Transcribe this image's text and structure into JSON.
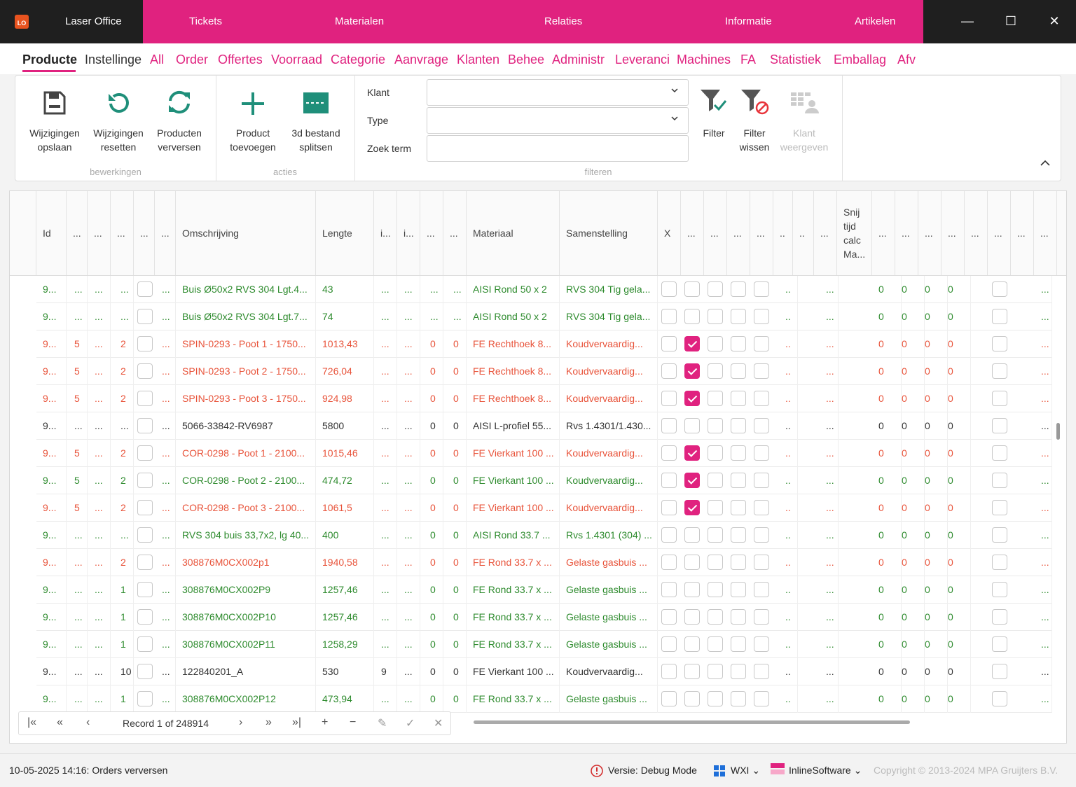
{
  "app": {
    "logo": "LO",
    "name": "Laser Office",
    "nav": [
      "Tickets",
      "Materialen",
      "Relaties",
      "Informatie",
      "Artikelen"
    ]
  },
  "window": {
    "minimize": "—",
    "maximize": "☐",
    "close": "✕"
  },
  "tabs": [
    "Producte",
    "Instellinge",
    "All",
    "Order",
    "Offertes",
    "Voorraad",
    "Categorie",
    "Aanvrage",
    "Klanten",
    "Behee",
    "Administr",
    "Leveranci",
    "Machines",
    "FA",
    "Statistiek",
    "Emballag",
    "Afv"
  ],
  "ribbon": {
    "save": [
      "Wijzigingen",
      "opslaan"
    ],
    "reset": [
      "Wijzigingen",
      "resetten"
    ],
    "refresh": [
      "Producten",
      "verversen"
    ],
    "add": [
      "Product",
      "toevoegen"
    ],
    "split": [
      "3d bestand",
      "splitsen"
    ],
    "filter": [
      "Filter",
      ""
    ],
    "clear": [
      "Filter",
      "wissen"
    ],
    "showklant": [
      "Klant",
      "weergeven"
    ],
    "groups": {
      "bewerkingen": "bewerkingen",
      "acties": "acties",
      "filteren": "filteren"
    },
    "fields": {
      "klant": "Klant",
      "type": "Type",
      "zoek": "Zoek term"
    }
  },
  "columns": {
    "id": "Id",
    "omschrijving": "Omschrijving",
    "lengte": "Lengte",
    "materiaal": "Materiaal",
    "samenstelling": "Samenstelling",
    "snij": [
      "Snij",
      "tijd",
      "calc",
      "Ma..."
    ],
    "ellipsis": "...",
    "ellipsis_i": "i...",
    "x": "X",
    "dots": "..",
    "dot": "."
  },
  "rows": [
    {
      "c": "green",
      "id": "9...",
      "a": "...",
      "b": "...",
      "q": "...",
      "desc": "Buis Ø50x2 RVS 304 Lgt.4...",
      "len": "43",
      "z1": "...",
      "z2": "...",
      "mat": "AISI Rond 50 x 2",
      "sam": "RVS 304 Tig gela...",
      "chk": false
    },
    {
      "c": "green",
      "id": "9...",
      "a": "...",
      "b": "...",
      "q": "...",
      "desc": "Buis Ø50x2 RVS 304 Lgt.7...",
      "len": "74",
      "z1": "...",
      "z2": "...",
      "mat": "AISI Rond 50 x 2",
      "sam": "RVS 304 Tig gela...",
      "chk": false
    },
    {
      "c": "red",
      "id": "9...",
      "a": "5",
      "b": "...",
      "q": "2",
      "desc": "SPIN-0293 - Poot 1 - 1750...",
      "len": "1013,43",
      "z1": "0",
      "z2": "0",
      "mat": "FE Rechthoek 8...",
      "sam": "Koudvervaardig...",
      "chk": true
    },
    {
      "c": "red",
      "id": "9...",
      "a": "5",
      "b": "...",
      "q": "2",
      "desc": "SPIN-0293 - Poot 2 - 1750...",
      "len": "726,04",
      "z1": "0",
      "z2": "0",
      "mat": "FE Rechthoek 8...",
      "sam": "Koudvervaardig...",
      "chk": true
    },
    {
      "c": "red",
      "id": "9...",
      "a": "5",
      "b": "...",
      "q": "2",
      "desc": "SPIN-0293 - Poot 3 - 1750...",
      "len": "924,98",
      "z1": "0",
      "z2": "0",
      "mat": "FE Rechthoek 8...",
      "sam": "Koudvervaardig...",
      "chk": true
    },
    {
      "c": "black",
      "id": "9...",
      "a": "...",
      "b": "...",
      "q": "...",
      "desc": "5066-33842-RV6987",
      "len": "5800",
      "z1": "0",
      "z2": "0",
      "mat": "AISI L-profiel 55...",
      "sam": "Rvs 1.4301/1.430...",
      "chk": false
    },
    {
      "c": "red",
      "id": "9...",
      "a": "5",
      "b": "...",
      "q": "2",
      "desc": "COR-0298 - Poot 1 - 2100...",
      "len": "1015,46",
      "z1": "0",
      "z2": "0",
      "mat": "FE Vierkant 100 ...",
      "sam": "Koudvervaardig...",
      "chk": true
    },
    {
      "c": "green",
      "id": "9...",
      "a": "5",
      "b": "...",
      "q": "2",
      "desc": "COR-0298 - Poot 2 - 2100...",
      "len": "474,72",
      "z1": "0",
      "z2": "0",
      "mat": "FE Vierkant 100 ...",
      "sam": "Koudvervaardig...",
      "chk": true
    },
    {
      "c": "red",
      "id": "9...",
      "a": "5",
      "b": "...",
      "q": "2",
      "desc": "COR-0298 - Poot 3 - 2100...",
      "len": "1061,5",
      "z1": "0",
      "z2": "0",
      "mat": "FE Vierkant 100 ...",
      "sam": "Koudvervaardig...",
      "chk": true
    },
    {
      "c": "green",
      "id": "9...",
      "a": "...",
      "b": "...",
      "q": "...",
      "desc": "RVS 304 buis 33,7x2, lg 40...",
      "len": "400",
      "z1": "0",
      "z2": "0",
      "mat": "AISI Rond 33.7 ...",
      "sam": "Rvs 1.4301 (304) ...",
      "chk": false
    },
    {
      "c": "red",
      "id": "9...",
      "a": "...",
      "b": "...",
      "q": "2",
      "desc": "308876M0CX002p1",
      "len": "1940,58",
      "z1": "0",
      "z2": "0",
      "mat": "FE Rond 33.7 x ...",
      "sam": "Gelaste gasbuis ...",
      "chk": false
    },
    {
      "c": "green",
      "id": "9...",
      "a": "...",
      "b": "...",
      "q": "1",
      "desc": "308876M0CX002P9",
      "len": "1257,46",
      "z1": "0",
      "z2": "0",
      "mat": "FE Rond 33.7 x ...",
      "sam": "Gelaste gasbuis ...",
      "chk": false
    },
    {
      "c": "green",
      "id": "9...",
      "a": "...",
      "b": "...",
      "q": "1",
      "desc": "308876M0CX002P10",
      "len": "1257,46",
      "z1": "0",
      "z2": "0",
      "mat": "FE Rond 33.7 x ...",
      "sam": "Gelaste gasbuis ...",
      "chk": false
    },
    {
      "c": "green",
      "id": "9...",
      "a": "...",
      "b": "...",
      "q": "1",
      "desc": "308876M0CX002P11",
      "len": "1258,29",
      "z1": "0",
      "z2": "0",
      "mat": "FE Rond 33.7 x ...",
      "sam": "Gelaste gasbuis ...",
      "chk": false
    },
    {
      "c": "black",
      "id": "9...",
      "a": "...",
      "b": "...",
      "q": "10",
      "desc": "122840201_A",
      "len": "530",
      "z1": "0",
      "z2": "0",
      "mat": "FE Vierkant 100 ...",
      "sam": "Koudvervaardig...",
      "chk": false,
      "nine": "9"
    },
    {
      "c": "green",
      "id": "9...",
      "a": "...",
      "b": "...",
      "q": "1",
      "desc": "308876M0CX002P12",
      "len": "473,94",
      "z1": "0",
      "z2": "0",
      "mat": "FE Rond 33.7 x ...",
      "sam": "Gelaste gasbuis ...",
      "chk": false
    }
  ],
  "zero": "0",
  "pager": {
    "record": "Record 1 of 248914",
    "first": "|«",
    "prev_page": "«",
    "prev": "‹",
    "next": "›",
    "next_page": "»",
    "last": "»|",
    "add": "+",
    "remove": "−",
    "edit": "✎",
    "ok": "✓",
    "cancel": "✕"
  },
  "status": {
    "left": "10-05-2025 14:16: Orders verversen",
    "version": "Versie: Debug Mode",
    "theme": "WXI",
    "skin": "InlineSoftware",
    "copyright": "Copyright © 2013-2024 MPA Gruijters B.V."
  },
  "colors": {
    "accent": "#e0227f",
    "green": "#2e8b2e",
    "red": "#e8533a"
  }
}
